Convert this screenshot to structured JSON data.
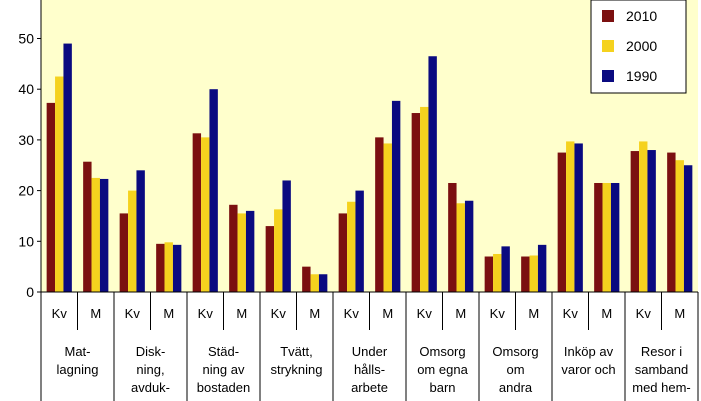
{
  "chart_data": {
    "type": "bar",
    "title": "",
    "xlabel": "",
    "ylabel": "",
    "ylim": [
      0,
      55
    ],
    "yticks": [
      0,
      10,
      20,
      30,
      40,
      50
    ],
    "grid": false,
    "legend_position": "top-right",
    "groups": [
      {
        "lines": [
          "Mat-",
          "lagning"
        ]
      },
      {
        "lines": [
          "Disk-",
          "ning,",
          "avduk-"
        ]
      },
      {
        "lines": [
          "Städ-",
          "ning av",
          "bostaden"
        ]
      },
      {
        "lines": [
          "Tvätt,",
          "strykning"
        ]
      },
      {
        "lines": [
          "Under",
          "hålls-",
          "arbete"
        ]
      },
      {
        "lines": [
          "Omsorg",
          "om egna",
          "barn"
        ]
      },
      {
        "lines": [
          "Omsorg",
          "om",
          "andra"
        ]
      },
      {
        "lines": [
          "Inköp av",
          "varor och"
        ]
      },
      {
        "lines": [
          "Resor i",
          "samband",
          "med hem-"
        ]
      }
    ],
    "subcategories": [
      "Kv",
      "M"
    ],
    "series": [
      {
        "name": "2010",
        "color": "#7b1010",
        "values": [
          37.3,
          25.7,
          15.5,
          9.5,
          31.3,
          17.2,
          13.0,
          5.0,
          15.5,
          30.5,
          35.3,
          21.5,
          7.0,
          7.0,
          27.5,
          21.5,
          27.8,
          27.5
        ]
      },
      {
        "name": "2000",
        "color": "#f5d21e",
        "values": [
          42.5,
          22.5,
          20.0,
          9.8,
          30.5,
          15.5,
          16.3,
          3.5,
          17.8,
          29.3,
          36.5,
          17.5,
          7.5,
          7.2,
          29.7,
          21.5,
          29.7,
          26.0
        ]
      },
      {
        "name": "1990",
        "color": "#0a0a80",
        "values": [
          49.0,
          22.3,
          24.0,
          9.3,
          40.0,
          16.0,
          22.0,
          3.5,
          20.0,
          37.7,
          46.5,
          18.0,
          9.0,
          9.3,
          29.3,
          21.5,
          28.0,
          25.0
        ]
      }
    ]
  }
}
